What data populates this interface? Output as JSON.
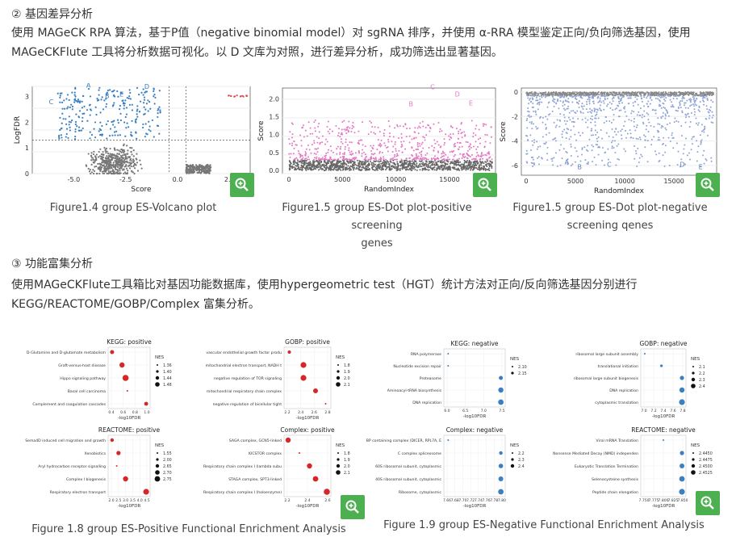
{
  "section2": {
    "heading": "② 基因差异分析",
    "para_line1": "使用 MAGeCK RPA 算法，基于P值（negative binomial model）对 sgRNA 排序，并使用 α-RRA 模型鉴定正向/负向筛选基因，使用",
    "para_line2": "MAGeCKFlute 工具将分析数据可视化。以 D 文库为对照，进行差异分析，成功筛选出显著基因。"
  },
  "section3": {
    "heading": "③ 功能富集分析",
    "para_line1": "使用MAGeCKFlute工具箱比对基因功能数据库，使用hypergeometric test（HGT）统计方法对正向/反向筛选基因分别进行",
    "para_line2": "KEGG/REACTOME/GOBP/Complex 富集分析。"
  },
  "captions": {
    "fig1": "Figure1.4 group ES-Volcano plot",
    "fig2_l1": "Figure1.5 group ES-Dot plot-positive screening",
    "fig2_l2": "genes",
    "fig3_l1": "Figure1.5 group ES-Dot plot-negative",
    "fig3_l2": "screening qenes",
    "fig4": "Figure 1.8 group ES-Positive Functional Enrichment Analysis",
    "fig5": "Figure 1.9 group ES-Negative Functional Enrichment Analysis"
  },
  "icons": {
    "zoom": "zoom-in-icon"
  },
  "colors": {
    "zoom_bg": "#4caf50",
    "blue_points": "#3a7fc0",
    "pink_points": "#e377c2",
    "red_dots": "#d62728",
    "grey_points": "#777777"
  },
  "volcano": {
    "xlabel": "Score",
    "ylabel": "LogFDR",
    "xticks": [
      "-5.0",
      "-2.5",
      "0.0",
      "2.5"
    ],
    "yticks": [
      "0",
      "1",
      "2",
      "3"
    ],
    "labels": [
      "A",
      "B",
      "C",
      "D",
      "E"
    ]
  },
  "dot_pos": {
    "xlabel": "RandomIndex",
    "ylabel": "Score",
    "xticks": [
      "0",
      "5000",
      "10000",
      "15000"
    ],
    "yticks": [
      "0.0",
      "0.5",
      "1.0",
      "1.5",
      "2.0"
    ],
    "labels": [
      "A",
      "B",
      "C",
      "D",
      "E"
    ]
  },
  "dot_neg": {
    "xlabel": "RandomIndex",
    "ylabel": "Score",
    "xticks": [
      "0",
      "5000",
      "10000",
      "15000"
    ],
    "yticks": [
      "0",
      "-2",
      "-4",
      "-6"
    ],
    "labels": [
      "A",
      "B",
      "C",
      "D",
      "E"
    ]
  },
  "pos_enrich": {
    "xlabel": "-log10FDR",
    "legend_title": "NES",
    "panels": [
      {
        "title": "KEGG: positive",
        "terms": [
          "D-Glutamine and D-glutamate metabolism",
          "Graft-versus-host disease",
          "Hippo signaling pathway",
          "Basal cell carcinoma",
          "Complement and coagulation cascades"
        ],
        "xticks": [
          "0.4",
          "0.6",
          "0.8",
          "1.0"
        ],
        "legend": [
          "1.36",
          "1.40",
          "1.44",
          "1.48"
        ]
      },
      {
        "title": "GOBP: positive",
        "terms": [
          "vascular endothelial growth factor produ",
          "mitochondrial electron transport, NADH t",
          "negative regulation of TOR signaling",
          "mitochondrial respiratory chain complex",
          "negative regulation of bicellular tight"
        ],
        "xticks": [
          "2.2",
          "2.4",
          "2.6",
          "2.8"
        ],
        "legend": [
          "1.8",
          "1.9",
          "2.0",
          "2.1"
        ]
      },
      {
        "title": "REACTOME: positive",
        "terms": [
          "Sema4D induced cell migration and growth",
          "Xenobiotics",
          "Aryl hydrocarbon receptor signalling",
          "Complex I biogenesis",
          "Respiratory electron transport"
        ],
        "xticks": [
          "2.0",
          "2.5",
          "3.0",
          "3.5",
          "4.0",
          "4.5"
        ],
        "legend": [
          "1.55",
          "2.00",
          "2.65",
          "2.70",
          "2.75"
        ]
      },
      {
        "title": "Complex: positive",
        "terms": [
          "SAGA complex, GCN5-linked",
          "KICSTOR complex",
          "Respiratory chain complex I (lambda subu",
          "STAGA complex, SPT3-linked",
          "Respiratory chain complex I (holoenzyme)"
        ],
        "xticks": [
          "2.2",
          "2.4",
          "2.6"
        ],
        "legend": [
          "1.8",
          "1.9",
          "2.0",
          "2.1"
        ]
      }
    ]
  },
  "neg_enrich": {
    "xlabel": "-log10FDR",
    "legend_title": "NES",
    "panels": [
      {
        "title": "KEGG: negative",
        "terms": [
          "RNA polymerase",
          "Nucleotide excision repair",
          "Proteasome",
          "Aminoacyl-tRNA biosynthesis",
          "DNA replication"
        ],
        "xticks": [
          "6.0",
          "6.5",
          "7.0",
          "7.5"
        ],
        "legend": [
          "2.10",
          "2.15"
        ]
      },
      {
        "title": "GOBP: negative",
        "terms": [
          "ribosomal large subunit assembly",
          "translational initiation",
          "ribosomal large subunit biogenesis",
          "DNA replication",
          "cytoplasmic translation"
        ],
        "xticks": [
          "7.0",
          "7.2",
          "7.4",
          "7.6",
          "7.8"
        ],
        "legend": [
          "2.1",
          "2.2",
          "2.3",
          "2.4"
        ]
      },
      {
        "title": "Complex: negative",
        "terms": [
          "TRBP containing complex (DICER, RPL7A, E",
          "C complex spliceosome",
          "60S ribosomal subunit, cytoplasmic",
          "40S ribosomal subunit, cytoplasmic",
          "Ribosome, cytoplasmic"
        ],
        "xticks": [
          "7.66",
          "7.68",
          "7.70",
          "7.72",
          "7.74",
          "7.76",
          "7.78",
          "7.80"
        ],
        "legend": [
          "2.2",
          "2.3",
          "2.4"
        ]
      },
      {
        "title": "REACTOME: negative",
        "terms": [
          "Viral mRNA Translation",
          "Nonsense Mediated Decay (NMD) independen",
          "Eukaryotic Translation Termination",
          "Selenocysteine synthesis",
          "Peptide chain elongation"
        ],
        "xticks": [
          "7.750",
          "7.775",
          "7.800",
          "7.825",
          "7.850"
        ],
        "legend": [
          "2.4450",
          "2.4475",
          "2.4500",
          "2.4525"
        ]
      }
    ]
  }
}
